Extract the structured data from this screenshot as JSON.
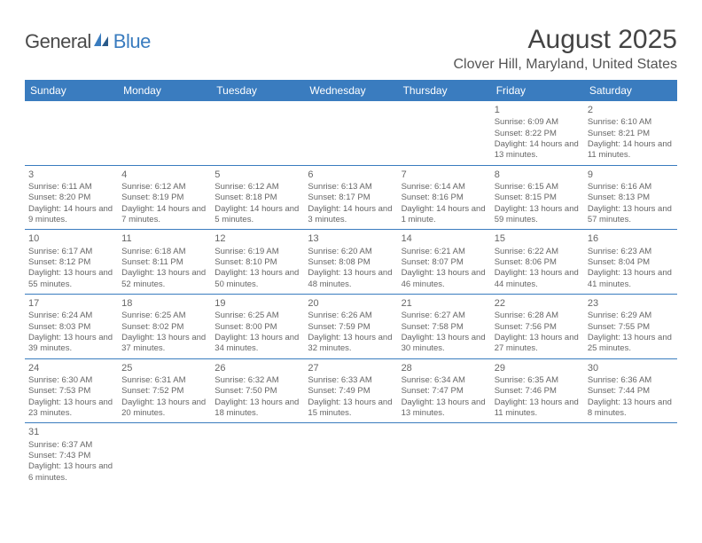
{
  "logo": {
    "part1": "General",
    "part2": "Blue"
  },
  "title": "August 2025",
  "location": "Clover Hill, Maryland, United States",
  "weekdays": [
    "Sunday",
    "Monday",
    "Tuesday",
    "Wednesday",
    "Thursday",
    "Friday",
    "Saturday"
  ],
  "colors": {
    "header_bg": "#3a7cbf",
    "header_text": "#ffffff",
    "border": "#3a7cbf",
    "text": "#666666"
  },
  "weeks": [
    [
      {
        "n": "",
        "sr": "",
        "ss": "",
        "dl": ""
      },
      {
        "n": "",
        "sr": "",
        "ss": "",
        "dl": ""
      },
      {
        "n": "",
        "sr": "",
        "ss": "",
        "dl": ""
      },
      {
        "n": "",
        "sr": "",
        "ss": "",
        "dl": ""
      },
      {
        "n": "",
        "sr": "",
        "ss": "",
        "dl": ""
      },
      {
        "n": "1",
        "sr": "Sunrise: 6:09 AM",
        "ss": "Sunset: 8:22 PM",
        "dl": "Daylight: 14 hours and 13 minutes."
      },
      {
        "n": "2",
        "sr": "Sunrise: 6:10 AM",
        "ss": "Sunset: 8:21 PM",
        "dl": "Daylight: 14 hours and 11 minutes."
      }
    ],
    [
      {
        "n": "3",
        "sr": "Sunrise: 6:11 AM",
        "ss": "Sunset: 8:20 PM",
        "dl": "Daylight: 14 hours and 9 minutes."
      },
      {
        "n": "4",
        "sr": "Sunrise: 6:12 AM",
        "ss": "Sunset: 8:19 PM",
        "dl": "Daylight: 14 hours and 7 minutes."
      },
      {
        "n": "5",
        "sr": "Sunrise: 6:12 AM",
        "ss": "Sunset: 8:18 PM",
        "dl": "Daylight: 14 hours and 5 minutes."
      },
      {
        "n": "6",
        "sr": "Sunrise: 6:13 AM",
        "ss": "Sunset: 8:17 PM",
        "dl": "Daylight: 14 hours and 3 minutes."
      },
      {
        "n": "7",
        "sr": "Sunrise: 6:14 AM",
        "ss": "Sunset: 8:16 PM",
        "dl": "Daylight: 14 hours and 1 minute."
      },
      {
        "n": "8",
        "sr": "Sunrise: 6:15 AM",
        "ss": "Sunset: 8:15 PM",
        "dl": "Daylight: 13 hours and 59 minutes."
      },
      {
        "n": "9",
        "sr": "Sunrise: 6:16 AM",
        "ss": "Sunset: 8:13 PM",
        "dl": "Daylight: 13 hours and 57 minutes."
      }
    ],
    [
      {
        "n": "10",
        "sr": "Sunrise: 6:17 AM",
        "ss": "Sunset: 8:12 PM",
        "dl": "Daylight: 13 hours and 55 minutes."
      },
      {
        "n": "11",
        "sr": "Sunrise: 6:18 AM",
        "ss": "Sunset: 8:11 PM",
        "dl": "Daylight: 13 hours and 52 minutes."
      },
      {
        "n": "12",
        "sr": "Sunrise: 6:19 AM",
        "ss": "Sunset: 8:10 PM",
        "dl": "Daylight: 13 hours and 50 minutes."
      },
      {
        "n": "13",
        "sr": "Sunrise: 6:20 AM",
        "ss": "Sunset: 8:08 PM",
        "dl": "Daylight: 13 hours and 48 minutes."
      },
      {
        "n": "14",
        "sr": "Sunrise: 6:21 AM",
        "ss": "Sunset: 8:07 PM",
        "dl": "Daylight: 13 hours and 46 minutes."
      },
      {
        "n": "15",
        "sr": "Sunrise: 6:22 AM",
        "ss": "Sunset: 8:06 PM",
        "dl": "Daylight: 13 hours and 44 minutes."
      },
      {
        "n": "16",
        "sr": "Sunrise: 6:23 AM",
        "ss": "Sunset: 8:04 PM",
        "dl": "Daylight: 13 hours and 41 minutes."
      }
    ],
    [
      {
        "n": "17",
        "sr": "Sunrise: 6:24 AM",
        "ss": "Sunset: 8:03 PM",
        "dl": "Daylight: 13 hours and 39 minutes."
      },
      {
        "n": "18",
        "sr": "Sunrise: 6:25 AM",
        "ss": "Sunset: 8:02 PM",
        "dl": "Daylight: 13 hours and 37 minutes."
      },
      {
        "n": "19",
        "sr": "Sunrise: 6:25 AM",
        "ss": "Sunset: 8:00 PM",
        "dl": "Daylight: 13 hours and 34 minutes."
      },
      {
        "n": "20",
        "sr": "Sunrise: 6:26 AM",
        "ss": "Sunset: 7:59 PM",
        "dl": "Daylight: 13 hours and 32 minutes."
      },
      {
        "n": "21",
        "sr": "Sunrise: 6:27 AM",
        "ss": "Sunset: 7:58 PM",
        "dl": "Daylight: 13 hours and 30 minutes."
      },
      {
        "n": "22",
        "sr": "Sunrise: 6:28 AM",
        "ss": "Sunset: 7:56 PM",
        "dl": "Daylight: 13 hours and 27 minutes."
      },
      {
        "n": "23",
        "sr": "Sunrise: 6:29 AM",
        "ss": "Sunset: 7:55 PM",
        "dl": "Daylight: 13 hours and 25 minutes."
      }
    ],
    [
      {
        "n": "24",
        "sr": "Sunrise: 6:30 AM",
        "ss": "Sunset: 7:53 PM",
        "dl": "Daylight: 13 hours and 23 minutes."
      },
      {
        "n": "25",
        "sr": "Sunrise: 6:31 AM",
        "ss": "Sunset: 7:52 PM",
        "dl": "Daylight: 13 hours and 20 minutes."
      },
      {
        "n": "26",
        "sr": "Sunrise: 6:32 AM",
        "ss": "Sunset: 7:50 PM",
        "dl": "Daylight: 13 hours and 18 minutes."
      },
      {
        "n": "27",
        "sr": "Sunrise: 6:33 AM",
        "ss": "Sunset: 7:49 PM",
        "dl": "Daylight: 13 hours and 15 minutes."
      },
      {
        "n": "28",
        "sr": "Sunrise: 6:34 AM",
        "ss": "Sunset: 7:47 PM",
        "dl": "Daylight: 13 hours and 13 minutes."
      },
      {
        "n": "29",
        "sr": "Sunrise: 6:35 AM",
        "ss": "Sunset: 7:46 PM",
        "dl": "Daylight: 13 hours and 11 minutes."
      },
      {
        "n": "30",
        "sr": "Sunrise: 6:36 AM",
        "ss": "Sunset: 7:44 PM",
        "dl": "Daylight: 13 hours and 8 minutes."
      }
    ],
    [
      {
        "n": "31",
        "sr": "Sunrise: 6:37 AM",
        "ss": "Sunset: 7:43 PM",
        "dl": "Daylight: 13 hours and 6 minutes."
      },
      {
        "n": "",
        "sr": "",
        "ss": "",
        "dl": ""
      },
      {
        "n": "",
        "sr": "",
        "ss": "",
        "dl": ""
      },
      {
        "n": "",
        "sr": "",
        "ss": "",
        "dl": ""
      },
      {
        "n": "",
        "sr": "",
        "ss": "",
        "dl": ""
      },
      {
        "n": "",
        "sr": "",
        "ss": "",
        "dl": ""
      },
      {
        "n": "",
        "sr": "",
        "ss": "",
        "dl": ""
      }
    ]
  ]
}
